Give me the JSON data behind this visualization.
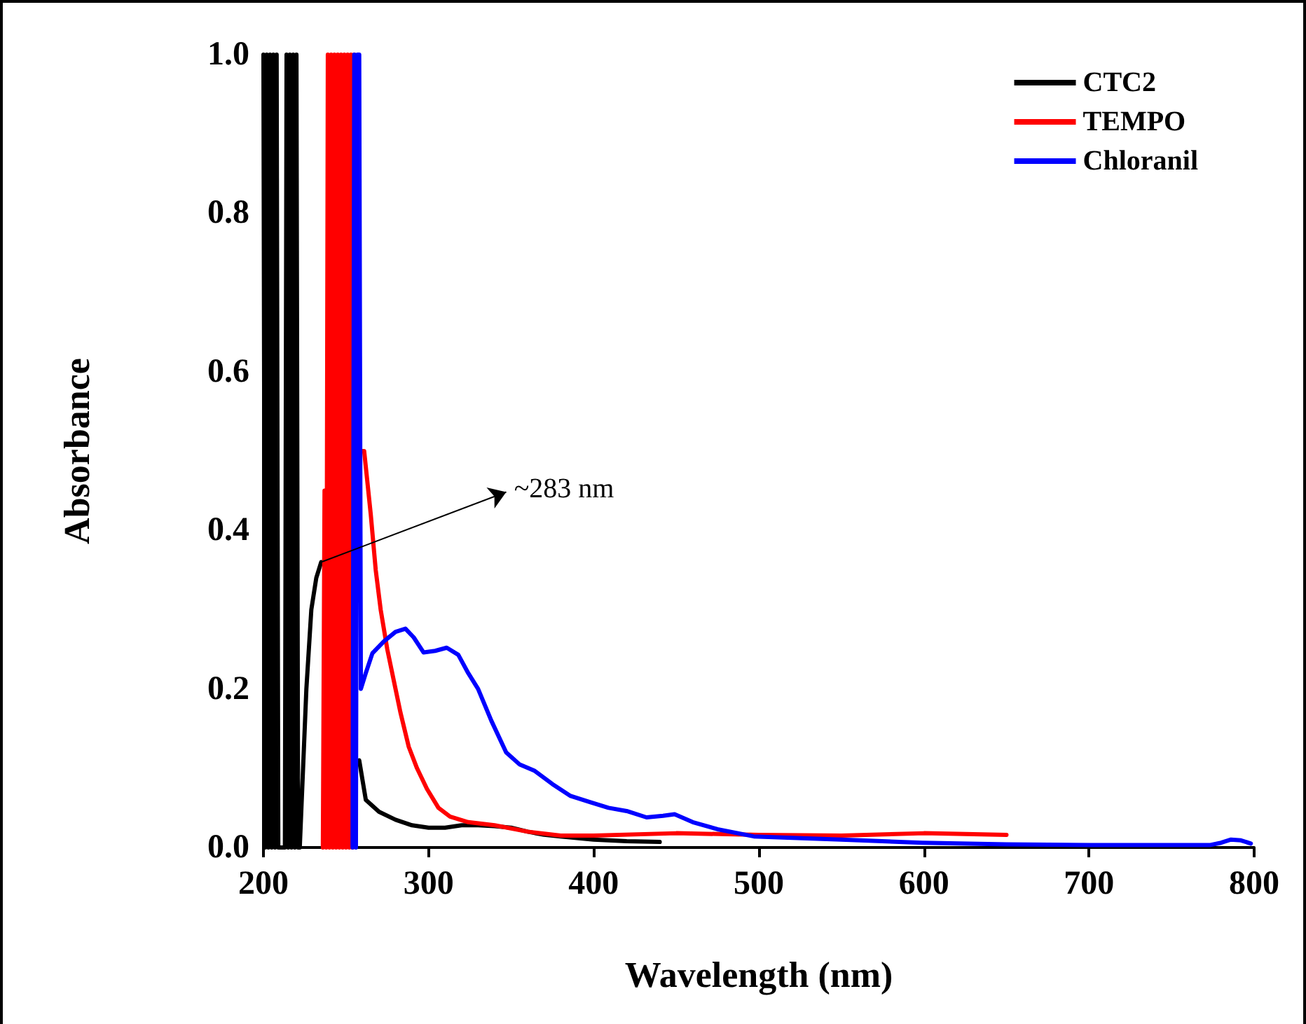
{
  "chart_data": {
    "type": "line",
    "xlabel": "Wavelength (nm)",
    "ylabel": "Absorbance",
    "xlim": [
      200,
      800
    ],
    "xticks": [
      200,
      300,
      400,
      500,
      600,
      700,
      800
    ],
    "ylim": [
      0,
      1
    ],
    "yticks": [
      {
        "value": 0,
        "label": "0.0"
      },
      {
        "value": 0.2,
        "label": "0.2"
      },
      {
        "value": 0.4,
        "label": "0.4"
      },
      {
        "value": 0.6,
        "label": "0.6"
      },
      {
        "value": 0.8,
        "label": "0.8"
      },
      {
        "value": 1,
        "label": "1.0"
      }
    ],
    "grid": false,
    "legend": "top right",
    "marker": "none",
    "line_style": "solid",
    "annotations": [
      {
        "text": "~283 nm",
        "x": 235,
        "y": 0.36
      }
    ],
    "series": [
      {
        "name": "CTC2",
        "color": "#000000",
        "x": [
          200,
          201,
          202,
          203,
          204,
          205,
          206,
          207,
          208,
          209,
          213,
          214,
          215,
          216,
          217,
          218,
          219,
          220,
          221,
          222,
          224,
          226,
          229,
          232,
          235,
          238,
          241,
          245,
          250,
          255,
          258,
          262,
          270,
          280,
          290,
          300,
          310,
          320,
          330,
          340,
          350,
          360,
          370,
          380,
          400,
          420,
          440
        ],
        "values": [
          1,
          0,
          1,
          0,
          1,
          0,
          1,
          0,
          1,
          0,
          0,
          1,
          0,
          1,
          0,
          1,
          0,
          1,
          0,
          0,
          0.1,
          0.2,
          0.3,
          0.34,
          0.36,
          null,
          null,
          null,
          null,
          null,
          0.11,
          0.06,
          0.045,
          0.035,
          0.028,
          0.025,
          0.025,
          0.028,
          0.028,
          0.027,
          0.025,
          0.02,
          0.016,
          0.014,
          0.01,
          0.008,
          0.007
        ]
      },
      {
        "name": "TEMPO",
        "color": "#ff0000",
        "x": [
          236,
          237,
          238,
          239,
          240,
          241,
          242,
          243,
          244,
          245,
          246,
          247,
          248,
          249,
          250,
          251,
          252,
          253,
          254,
          255,
          256,
          258,
          260,
          261,
          265,
          268,
          271,
          275,
          279,
          283,
          288,
          293,
          299,
          306,
          313,
          324,
          340,
          360,
          380,
          400,
          450,
          500,
          550,
          600,
          650
        ],
        "values": [
          0,
          0.45,
          0,
          1,
          0,
          1,
          0,
          1,
          0,
          1,
          0,
          1,
          0,
          1,
          0,
          1,
          0,
          1,
          0,
          1,
          0.5,
          0.5,
          0.5,
          0.5,
          0.42,
          0.35,
          0.3,
          0.25,
          0.21,
          0.17,
          0.127,
          0.1,
          0.074,
          0.05,
          0.039,
          0.032,
          0.028,
          0.02,
          0.015,
          0.015,
          0.018,
          0.016,
          0.015,
          0.018,
          0.016
        ]
      },
      {
        "name": "Chloranil",
        "color": "#0000ff",
        "x": [
          254,
          255,
          256,
          257,
          258,
          259,
          262,
          266,
          273,
          280,
          286,
          291,
          297,
          304,
          311,
          318,
          324,
          330,
          338,
          347,
          355,
          364,
          375,
          386,
          398,
          409,
          420,
          432,
          442,
          449,
          460,
          475,
          497,
          550,
          599,
          650,
          701,
          750,
          773,
          780,
          786,
          792,
          798
        ],
        "values": [
          0,
          1,
          0,
          1,
          1,
          0.2,
          0.22,
          0.245,
          0.26,
          0.272,
          0.276,
          0.265,
          0.246,
          0.248,
          0.252,
          0.243,
          0.22,
          0.2,
          0.16,
          0.12,
          0.105,
          0.097,
          0.08,
          0.065,
          0.057,
          0.05,
          0.046,
          0.038,
          0.04,
          0.042,
          0.032,
          0.023,
          0.014,
          0.01,
          0.006,
          0.004,
          0.003,
          0.003,
          0.003,
          0.006,
          0.01,
          0.009,
          0.005
        ]
      }
    ]
  }
}
